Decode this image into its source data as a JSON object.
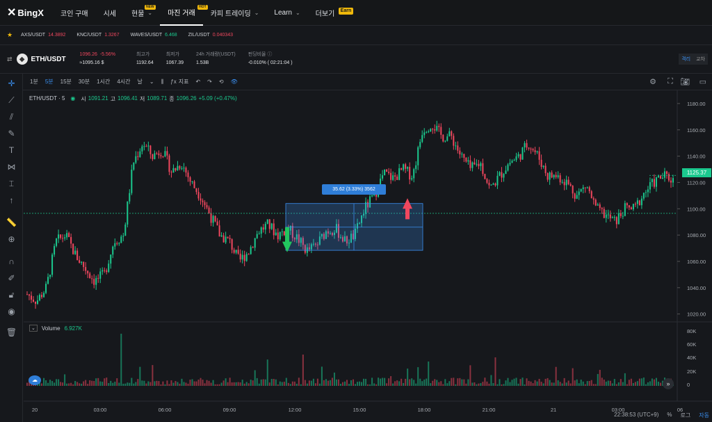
{
  "nav": {
    "logo": "BingX",
    "items": [
      "코인 구매",
      "시세",
      "현물",
      "마진 거래",
      "카피 트레이딩",
      "Learn",
      "더보기"
    ],
    "badge_new": "NEW",
    "badge_hot": "HOT",
    "badge_earn": "Earn"
  },
  "ticker": [
    {
      "sym": "AXS/USDT",
      "val": "14.3892",
      "dir": "down"
    },
    {
      "sym": "KNC/USDT",
      "val": "1.3267",
      "dir": "down"
    },
    {
      "sym": "WAVES/USDT",
      "val": "6.468",
      "dir": "up"
    },
    {
      "sym": "ZIL/USDT",
      "val": "0.040343",
      "dir": "down"
    }
  ],
  "pair": {
    "name": "ETH/USDT",
    "price": "1096.26",
    "change": "-5.56%",
    "fiat": "≈1095.16 $",
    "stats": [
      {
        "l": "최고가",
        "v": "1192.64"
      },
      {
        "l": "최저가",
        "v": "1067.39"
      },
      {
        "l": "24h 거래량(USDT)",
        "v": "1.53B"
      },
      {
        "l": "펀딩비율 ⓘ",
        "v": "-0.010%  ( 02:21:04 )"
      }
    ],
    "toggle": [
      "격리",
      "교차"
    ]
  },
  "toolbar": {
    "timeframes": [
      "1분",
      "5분",
      "15분",
      "30분",
      "1시간",
      "4시간",
      "날"
    ],
    "active": "5분",
    "indicator": "지표"
  },
  "chart_data": {
    "type": "candlestick",
    "symbol_label": "ETH/USDT · 5",
    "ohlc": {
      "o_label": "시",
      "o": "1091.21",
      "h_label": "고",
      "h": "1096.41",
      "l_label": "저",
      "l": "1089.71",
      "c_label": "종",
      "c": "1096.26",
      "chg": "+5.09 (+0.47%)"
    },
    "price_axis": [
      1180,
      1160,
      1140,
      1120,
      1100,
      1080,
      1060,
      1040,
      1020
    ],
    "price_axis_labels": [
      "1180.00",
      "1160.00",
      "1140.00",
      "1120.00",
      "1100.00",
      "1080.00",
      "1060.00",
      "1040.00",
      "1020.00"
    ],
    "ylim": [
      1014,
      1190
    ],
    "last_price": "1125.37",
    "time_axis": [
      "20",
      "03:00",
      "06:00",
      "09:00",
      "12:00",
      "15:00",
      "18:00",
      "21:00",
      "21",
      "03:00",
      "06"
    ],
    "volume_label": "Volume",
    "volume_value": "6.927K",
    "volume_axis": [
      "80K",
      "60K",
      "40K",
      "20K",
      "0"
    ],
    "measure": {
      "label": "35.62 (3.33%) 3562"
    },
    "close_path": [
      1035,
      1030,
      1040,
      1075,
      1080,
      1065,
      1055,
      1045,
      1050,
      1075,
      1080,
      1135,
      1150,
      1140,
      1145,
      1128,
      1135,
      1120,
      1110,
      1095,
      1080,
      1075,
      1060,
      1068,
      1083,
      1088,
      1080,
      1085,
      1078,
      1068,
      1072,
      1083,
      1085,
      1075,
      1080,
      1100,
      1110,
      1127,
      1123,
      1130,
      1125,
      1160,
      1165,
      1155,
      1155,
      1140,
      1130,
      1135,
      1115,
      1125,
      1135,
      1140,
      1150,
      1140,
      1125,
      1125,
      1120,
      1110,
      1118,
      1100,
      1095,
      1090,
      1100,
      1100,
      1112,
      1120,
      1125,
      1122
    ]
  },
  "footer": {
    "time": "22:38:53 (UTC+9)",
    "pct": "%",
    "log": "로그",
    "auto": "자동"
  },
  "colors": {
    "up": "#1bc98e",
    "down": "#f0475e",
    "accent": "#3a8ff0",
    "bg": "#16181c"
  }
}
